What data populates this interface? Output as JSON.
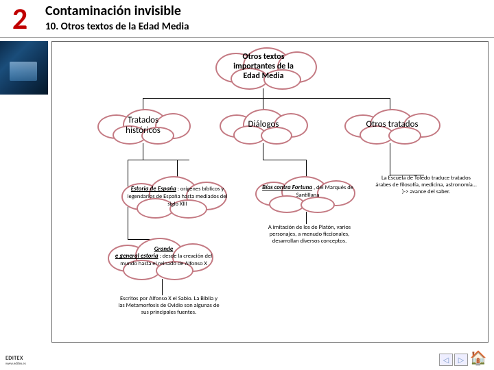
{
  "colors": {
    "accent_red": "#c00000",
    "cloud_border": "#c47a83",
    "page_bg": "#ffffff",
    "line": "#000000"
  },
  "header": {
    "chapter": "2",
    "title": "Contaminación invisible",
    "subtitle": "10. Otros textos de la Edad  Media"
  },
  "diagram": {
    "root": {
      "text": "Otros textos\nimportantes de la\nEdad Media",
      "fontsize": 12,
      "bold": true
    },
    "level2": [
      {
        "id": "tratados",
        "text": "Tratados\nhistóricos",
        "fontsize": 13
      },
      {
        "id": "dialogos",
        "text": "Diálogos",
        "fontsize": 13
      },
      {
        "id": "otros",
        "text": "Otros tratados",
        "fontsize": 13
      }
    ],
    "leaves": {
      "estoria": {
        "title": "Estoria de España",
        "rest": " : orígenes bíblicos y legendarios de España hasta mediados del siglo XIII",
        "fontsize": 9
      },
      "grande": {
        "title": "Grande\ne general estoria",
        "rest": " : desde la creación del mundo hasta el reinado de Alfonso X",
        "fontsize": 9
      },
      "bias": {
        "title": "Bías contra Fortuna",
        "rest": " , del Marqués de Santillana",
        "fontsize": 9
      }
    },
    "notes": {
      "alfonso": "Escritos por Alfonso X el Sabio. La Biblia y las Metamorfosis de Ovidio son algunas de sus principales fuentes.",
      "platon": "A imitación de los de Platón, varios personajes, a menudo ficcionales, desarrollan diversos conceptos.",
      "toledo": "La Escuela de Toledo traduce tratados árabes de filosofía, medicina, astronomía… )-> avance del saber."
    }
  },
  "footer": {
    "logo_top": "EDITEX",
    "logo_sub": "www.editex.es",
    "prev": "◁",
    "next": "▷",
    "home": "🏠"
  }
}
